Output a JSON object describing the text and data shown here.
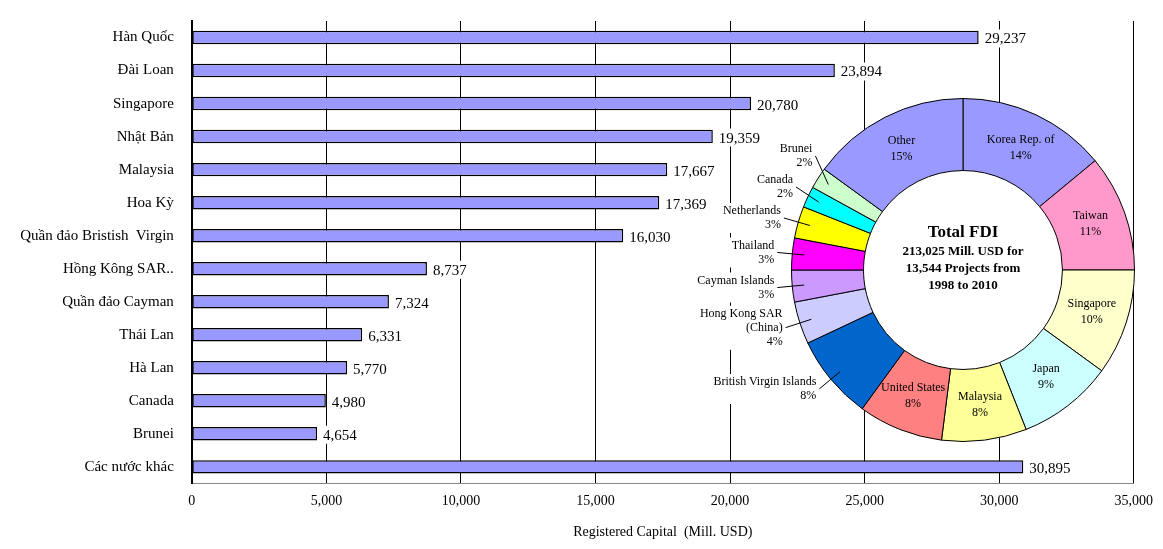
{
  "chart_data": [
    {
      "type": "bar",
      "orientation": "horizontal",
      "xlabel": "Registered Capital  (Mill. USD)",
      "categories": [
        "Hàn Quốc",
        "Đài Loan",
        "Singapore",
        "Nhật Bản",
        "Malaysia",
        "Hoa Kỳ",
        "Quần đảo Bristish  Virgin",
        "Hồng Kông SAR..",
        "Quần đảo Cayman",
        "Thái Lan",
        "Hà Lan",
        "Canada",
        "Brunei",
        "Các nước khác"
      ],
      "values": [
        29237,
        23894,
        20780,
        19359,
        17667,
        17369,
        16030,
        8737,
        7324,
        6331,
        5770,
        4980,
        4654,
        30895
      ],
      "value_labels": [
        "29,237",
        "23,894",
        "20,780",
        "19,359",
        "17,667",
        "17,369",
        "16,030",
        "8,737",
        "7,324",
        "6,331",
        "5,770",
        "4,980",
        "4,654",
        "30,895"
      ],
      "color": "#9999ff",
      "xlim": [
        0,
        35000
      ],
      "xticks": [
        {
          "value": 0,
          "label": "0"
        },
        {
          "value": 5000,
          "label": "5,000"
        },
        {
          "value": 10000,
          "label": "10,000"
        },
        {
          "value": 15000,
          "label": "15,000"
        },
        {
          "value": 20000,
          "label": "20,000"
        },
        {
          "value": 25000,
          "label": "25,000"
        },
        {
          "value": 30000,
          "label": "30,000"
        },
        {
          "value": 35000,
          "label": "35,000"
        }
      ],
      "grid": "x"
    },
    {
      "type": "donut",
      "title": "Total FDI",
      "subtitle": "213,025 Mill. USD for 13,544 Projects from 1998 to 2010",
      "categories": [
        "Korea Rep. of",
        "Taiwan",
        "Singapore",
        "Japan",
        "Malaysia",
        "United States",
        "British Virgin Islands",
        "Hong Kong SAR (China)",
        "Cayman Islands",
        "Thailand",
        "Netherlands",
        "Canada",
        "Brunei",
        "Other"
      ],
      "values": [
        14,
        11,
        10,
        9,
        8,
        8,
        8,
        4,
        3,
        3,
        3,
        2,
        2,
        15
      ],
      "value_labels": [
        "14%",
        "11%",
        "10%",
        "9%",
        "8%",
        "8%",
        "8%",
        "4%",
        "3%",
        "3%",
        "3%",
        "2%",
        "2%",
        "15%"
      ],
      "colors": [
        "#9999ff",
        "#ff99cc",
        "#ffffcc",
        "#ccffff",
        "#ffff99",
        "#ff8080",
        "#0066cc",
        "#ccccff",
        "#cc99ff",
        "#ff00ff",
        "#ffff00",
        "#00ffff",
        "#ccffcc",
        "#9999ff"
      ]
    }
  ]
}
